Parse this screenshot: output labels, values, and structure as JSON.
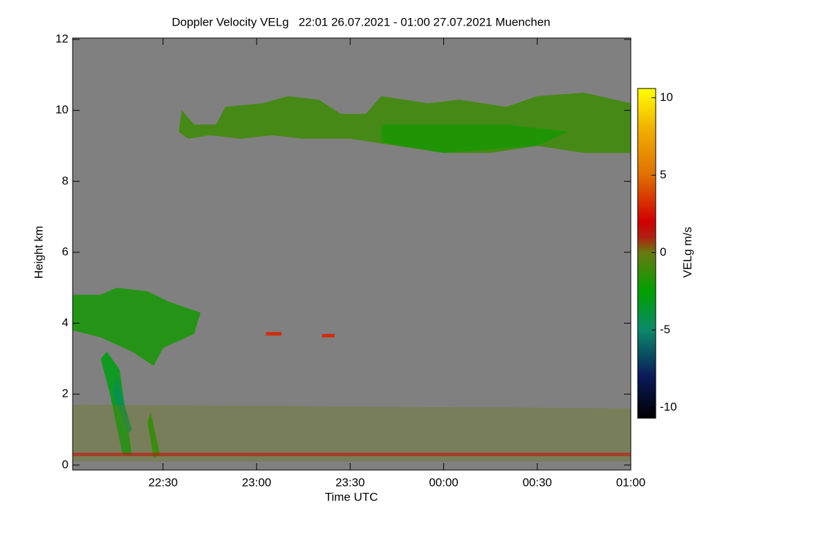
{
  "chart_data": {
    "type": "heatmap",
    "title": "Doppler Velocity VELg   22:01 26.07.2021 - 01:00 27.07.2021 Muenchen",
    "x_label": "Time UTC",
    "y_label": "Height km",
    "colorbar_label": "VELg m/s",
    "background": "#808080",
    "xlim": [
      1,
      180
    ],
    "xticks": [
      {
        "value": 30,
        "label": "22:30"
      },
      {
        "value": 60,
        "label": "23:00"
      },
      {
        "value": 90,
        "label": "23:30"
      },
      {
        "value": 120,
        "label": "00:00"
      },
      {
        "value": 150,
        "label": "00:30"
      },
      {
        "value": 180,
        "label": "01:00"
      }
    ],
    "ylim": [
      -0.14,
      12.04
    ],
    "yticks": [
      0,
      2,
      4,
      6,
      8,
      10,
      12
    ],
    "clim": [
      -10.7,
      10.6
    ],
    "cticks": [
      -10,
      -5,
      0,
      5,
      10
    ],
    "colormap": [
      [
        -10.7,
        "#000000"
      ],
      [
        -8,
        "#0a1a5a"
      ],
      [
        -5,
        "#0a8a6a"
      ],
      [
        -2.5,
        "#00a000"
      ],
      [
        0,
        "#6a7a10"
      ],
      [
        1,
        "#b02010"
      ],
      [
        2,
        "#d00000"
      ],
      [
        5,
        "#e07000"
      ],
      [
        8,
        "#f0b000"
      ],
      [
        10.6,
        "#ffff00"
      ]
    ],
    "regions": [
      {
        "x": [
          35,
          36,
          40,
          47,
          50,
          62,
          70,
          80,
          87,
          95,
          100,
          115,
          125,
          140,
          150,
          165,
          180,
          180,
          165,
          150,
          135,
          120,
          105,
          90,
          75,
          65,
          55,
          45,
          38
        ],
        "y": [
          9.4,
          10.0,
          9.6,
          9.6,
          10.1,
          10.2,
          10.4,
          10.3,
          9.9,
          9.9,
          10.4,
          10.2,
          10.3,
          10.1,
          10.4,
          10.5,
          10.2,
          8.8,
          8.8,
          9.0,
          8.8,
          8.8,
          9.0,
          9.2,
          9.2,
          9.3,
          9.2,
          9.3,
          9.2
        ],
        "value": -1,
        "opacity": 0.9
      },
      {
        "x": [
          100,
          140,
          160,
          150,
          120,
          100
        ],
        "y": [
          9.6,
          9.6,
          9.4,
          9.0,
          8.8,
          9.1
        ],
        "value": -2,
        "opacity": 0.8
      },
      {
        "x": [
          1,
          10,
          15,
          25,
          32,
          42,
          40,
          30,
          27,
          20,
          10,
          1
        ],
        "y": [
          4.8,
          4.8,
          5.0,
          4.9,
          4.6,
          4.3,
          3.7,
          3.3,
          2.8,
          3.2,
          3.6,
          3.8
        ],
        "value": -2,
        "opacity": 0.85
      },
      {
        "x": [
          12,
          16,
          20,
          17,
          13,
          10
        ],
        "y": [
          3.2,
          2.7,
          0.3,
          0.3,
          2.0,
          3.0
        ],
        "value": -3,
        "opacity": 0.9
      },
      {
        "x": [
          15,
          20,
          19,
          14
        ],
        "y": [
          2.5,
          1.0,
          0.9,
          2.0
        ],
        "value": -4.5,
        "opacity": 0.9
      },
      {
        "x": [
          26,
          29,
          27,
          25
        ],
        "y": [
          1.5,
          0.3,
          0.2,
          1.2
        ],
        "value": -2,
        "opacity": 0.9
      },
      {
        "x": [
          1,
          180,
          180,
          1
        ],
        "y": [
          1.7,
          1.6,
          0.1,
          0.1
        ],
        "value": 0,
        "opacity": 0.35
      },
      {
        "x": [
          1,
          180,
          180,
          1
        ],
        "y": [
          0.35,
          0.35,
          0.25,
          0.25
        ],
        "value": 2,
        "opacity": 0.5
      },
      {
        "x": [
          63,
          68,
          68,
          63
        ],
        "y": [
          3.75,
          3.75,
          3.65,
          3.65
        ],
        "value": 3,
        "opacity": 0.9
      },
      {
        "x": [
          81,
          85,
          85,
          81
        ],
        "y": [
          3.7,
          3.7,
          3.6,
          3.6
        ],
        "value": 3,
        "opacity": 0.9
      }
    ]
  }
}
